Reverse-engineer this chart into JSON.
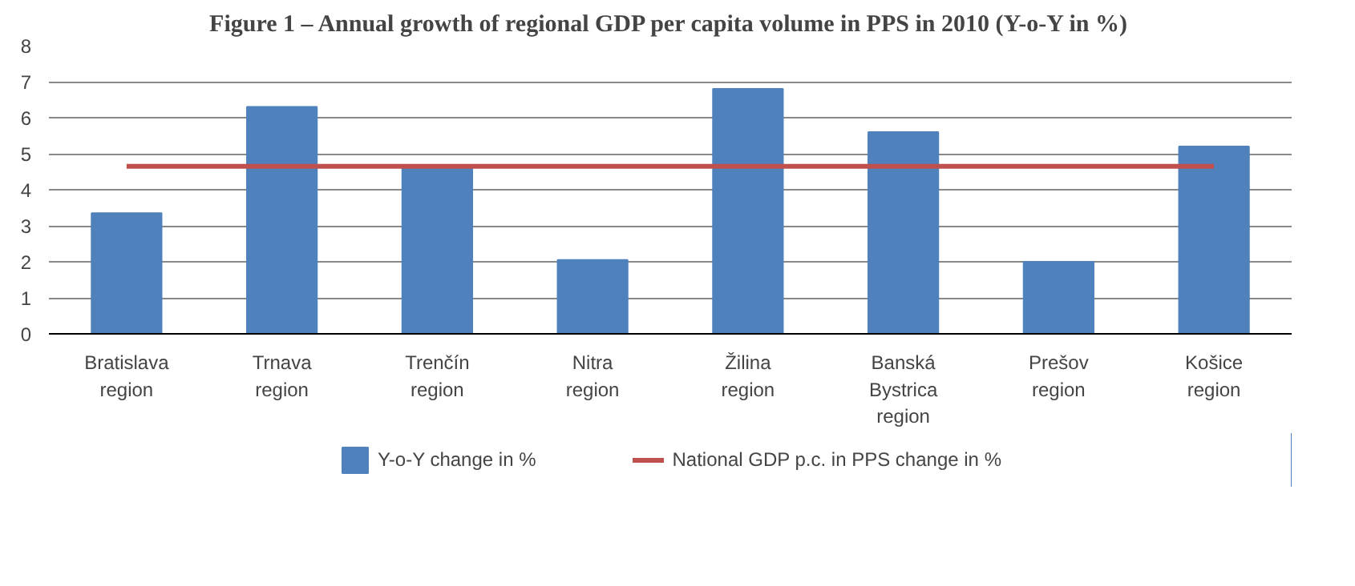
{
  "chart_data": {
    "type": "bar",
    "title": "Figure 1 – Annual growth of regional GDP per capita volume in PPS in 2010 (Y-o-Y in %)",
    "categories": [
      "Bratislava region",
      "Trnava region",
      "Trenčín region",
      "Nitra region",
      "Žilina region",
      "Banská Bystrica region",
      "Prešov region",
      "Košice region"
    ],
    "series": [
      {
        "name": "Y-o-Y change in %",
        "color": "#4f81bd",
        "values": [
          3.35,
          6.3,
          4.65,
          2.05,
          6.8,
          5.6,
          2.0,
          5.2
        ]
      },
      {
        "name": "National GDP p.c. in PPS change in %",
        "type": "line",
        "color": "#c0504d",
        "values": [
          4.65,
          4.65,
          4.65,
          4.65,
          4.65,
          4.65,
          4.65,
          4.65
        ]
      }
    ],
    "ylim": [
      0,
      8
    ],
    "yticks": [
      0,
      1,
      2,
      3,
      4,
      5,
      6,
      7,
      8
    ],
    "grid": "y",
    "legend": "bottom"
  }
}
